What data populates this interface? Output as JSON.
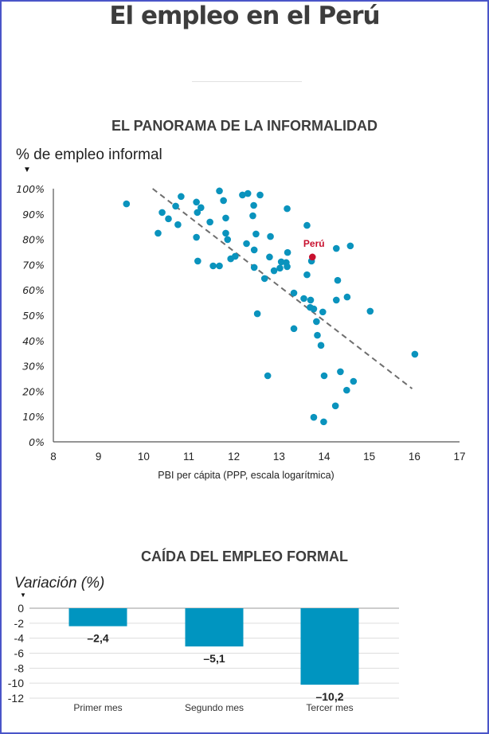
{
  "page": {
    "title": "El empleo en el Perú",
    "border_color": "#4a55c8"
  },
  "chart_data": [
    {
      "type": "scatter",
      "title": "EL PANORAMA DE LA INFORMALIDAD",
      "ylabel": "% de empleo informal",
      "xlabel": "PBI per cápita (PPP, escala logarítmica)",
      "xlim": [
        8,
        17
      ],
      "ylim": [
        0,
        100
      ],
      "xticks": [
        "8",
        "9",
        "10",
        "11",
        "12",
        "13",
        "14",
        "15",
        "16",
        "17"
      ],
      "yticks": [
        "0%",
        "10%",
        "20%",
        "30%",
        "40%",
        "50%",
        "60%",
        "70%",
        "80%",
        "90%",
        "100%"
      ],
      "grid": false,
      "point_color": "#0a93bd",
      "highlight_color": "#c8102e",
      "trendline": {
        "style": "dashed",
        "color": "#6e6e6e",
        "from": [
          10.2,
          100
        ],
        "to": [
          15.95,
          21
        ]
      },
      "highlight": {
        "label": "Perú",
        "x": 13.74,
        "y": 73.0
      },
      "points": [
        [
          9.62,
          94.0
        ],
        [
          10.32,
          82.4
        ],
        [
          10.41,
          90.6
        ],
        [
          10.55,
          88.1
        ],
        [
          10.71,
          93.1
        ],
        [
          10.76,
          85.8
        ],
        [
          10.83,
          96.9
        ],
        [
          11.17,
          94.7
        ],
        [
          11.27,
          92.5
        ],
        [
          11.19,
          90.6
        ],
        [
          11.17,
          80.8
        ],
        [
          11.2,
          71.4
        ],
        [
          11.47,
          86.8
        ],
        [
          11.54,
          69.5
        ],
        [
          11.68,
          69.5
        ],
        [
          11.68,
          99.1
        ],
        [
          11.77,
          95.3
        ],
        [
          11.82,
          88.4
        ],
        [
          11.82,
          82.4
        ],
        [
          11.86,
          79.9
        ],
        [
          11.93,
          72.3
        ],
        [
          12.03,
          73.3
        ],
        [
          12.19,
          97.5
        ],
        [
          12.31,
          98.1
        ],
        [
          12.44,
          93.4
        ],
        [
          12.42,
          89.3
        ],
        [
          12.58,
          97.5
        ],
        [
          12.49,
          82.1
        ],
        [
          12.28,
          78.3
        ],
        [
          12.45,
          75.8
        ],
        [
          12.45,
          68.9
        ],
        [
          12.68,
          64.5
        ],
        [
          12.81,
          81.1
        ],
        [
          12.79,
          73.0
        ],
        [
          12.89,
          67.6
        ],
        [
          13.02,
          68.6
        ],
        [
          13.05,
          71.1
        ],
        [
          13.16,
          70.8
        ],
        [
          13.18,
          69.2
        ],
        [
          13.19,
          74.8
        ],
        [
          13.18,
          92.1
        ],
        [
          13.62,
          85.5
        ],
        [
          13.62,
          66.0
        ],
        [
          13.72,
          71.4
        ],
        [
          14.27,
          76.4
        ],
        [
          14.58,
          77.4
        ],
        [
          14.3,
          63.8
        ],
        [
          13.33,
          58.8
        ],
        [
          13.55,
          56.6
        ],
        [
          13.7,
          56.0
        ],
        [
          13.69,
          53.1
        ],
        [
          13.77,
          52.5
        ],
        [
          13.97,
          51.3
        ],
        [
          14.27,
          56.0
        ],
        [
          14.51,
          57.2
        ],
        [
          15.02,
          51.6
        ],
        [
          12.52,
          50.6
        ],
        [
          13.83,
          47.5
        ],
        [
          13.33,
          44.7
        ],
        [
          13.85,
          42.1
        ],
        [
          13.93,
          38.1
        ],
        [
          16.01,
          34.6
        ],
        [
          12.75,
          26.1
        ],
        [
          14.0,
          26.1
        ],
        [
          14.36,
          27.7
        ],
        [
          14.65,
          23.9
        ],
        [
          14.5,
          20.4
        ],
        [
          14.25,
          14.2
        ],
        [
          13.77,
          9.7
        ],
        [
          13.99,
          7.9
        ]
      ]
    },
    {
      "type": "bar",
      "title": "CAÍDA DEL EMPLEO FORMAL",
      "ylabel": "Variación (%)",
      "xlabel": "",
      "ylim": [
        -12,
        0
      ],
      "yticks": [
        "0",
        "-2",
        "-4",
        "-6",
        "-8",
        "-10",
        "-12"
      ],
      "grid": true,
      "bar_color": "#0095c0",
      "categories": [
        "Primer mes",
        "Segundo mes",
        "Tercer mes"
      ],
      "values": [
        -2.4,
        -5.1,
        -10.2
      ],
      "value_labels": [
        "–2,4",
        "–5,1",
        "–10,2"
      ]
    }
  ]
}
